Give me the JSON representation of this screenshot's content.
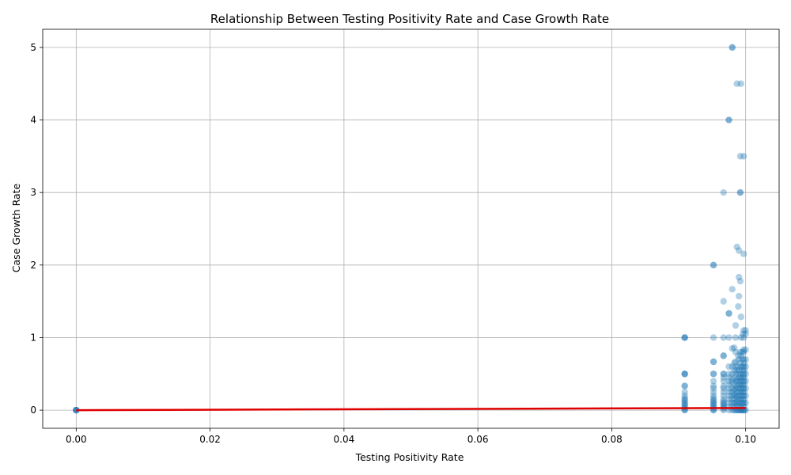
{
  "chart_data": {
    "type": "scatter",
    "title": "Relationship Between Testing Positivity Rate and Case Growth Rate",
    "xlabel": "Testing Positivity Rate",
    "ylabel": "Case Growth Rate",
    "xlim": [
      -0.005,
      0.105
    ],
    "ylim": [
      -0.25,
      5.25
    ],
    "xticks": [
      0.0,
      0.02,
      0.04,
      0.06,
      0.08,
      0.1
    ],
    "xtick_labels": [
      "0.00",
      "0.02",
      "0.04",
      "0.06",
      "0.08",
      "0.10"
    ],
    "yticks": [
      0,
      1,
      2,
      3,
      4,
      5
    ],
    "ytick_labels": [
      "0",
      "1",
      "2",
      "3",
      "4",
      "5"
    ],
    "grid": true,
    "marker_color": "#1f77b4",
    "marker_alpha": 0.35,
    "trend_color": "#e00000",
    "series": [
      {
        "points": [
          [
            0.0,
            0.0
          ],
          [
            0.0,
            0.0
          ],
          [
            0.0,
            0.0
          ],
          [
            0.0,
            0.0
          ],
          [
            0.0,
            0.0
          ],
          [
            0.0909,
            1.0
          ],
          [
            0.0909,
            1.0
          ],
          [
            0.0909,
            1.0
          ],
          [
            0.0909,
            0.5
          ],
          [
            0.0909,
            0.5
          ],
          [
            0.0909,
            0.5
          ],
          [
            0.0909,
            0.333
          ],
          [
            0.0909,
            0.333
          ],
          [
            0.0909,
            0.25
          ],
          [
            0.0909,
            0.2
          ],
          [
            0.0909,
            0.167
          ],
          [
            0.0909,
            0.143
          ],
          [
            0.0909,
            0.125
          ],
          [
            0.0909,
            0.1
          ],
          [
            0.0909,
            0.08
          ],
          [
            0.0909,
            0.06
          ],
          [
            0.0909,
            0.04
          ],
          [
            0.0909,
            0.02
          ],
          [
            0.0909,
            0.0
          ],
          [
            0.0909,
            0.0
          ],
          [
            0.0952,
            2.0
          ],
          [
            0.0952,
            2.0
          ],
          [
            0.0952,
            1.0
          ],
          [
            0.0952,
            0.667
          ],
          [
            0.0952,
            0.667
          ],
          [
            0.0952,
            0.5
          ],
          [
            0.0952,
            0.5
          ],
          [
            0.0952,
            0.4
          ],
          [
            0.0952,
            0.333
          ],
          [
            0.0952,
            0.3
          ],
          [
            0.0952,
            0.25
          ],
          [
            0.0952,
            0.2
          ],
          [
            0.0952,
            0.167
          ],
          [
            0.0952,
            0.14
          ],
          [
            0.0952,
            0.12
          ],
          [
            0.0952,
            0.1
          ],
          [
            0.0952,
            0.08
          ],
          [
            0.0952,
            0.06
          ],
          [
            0.0952,
            0.04
          ],
          [
            0.0952,
            0.02
          ],
          [
            0.0952,
            0.0
          ],
          [
            0.0952,
            0.0
          ],
          [
            0.0967,
            3.0
          ],
          [
            0.0967,
            1.5
          ],
          [
            0.0967,
            1.0
          ],
          [
            0.0967,
            0.75
          ],
          [
            0.0967,
            0.75
          ],
          [
            0.0967,
            0.5
          ],
          [
            0.0967,
            0.5
          ],
          [
            0.0967,
            0.45
          ],
          [
            0.0967,
            0.4
          ],
          [
            0.0967,
            0.33
          ],
          [
            0.0967,
            0.3
          ],
          [
            0.0967,
            0.25
          ],
          [
            0.0967,
            0.2
          ],
          [
            0.0967,
            0.15
          ],
          [
            0.0967,
            0.12
          ],
          [
            0.0967,
            0.1
          ],
          [
            0.0967,
            0.08
          ],
          [
            0.0967,
            0.06
          ],
          [
            0.0967,
            0.04
          ],
          [
            0.0967,
            0.02
          ],
          [
            0.0967,
            0.0
          ],
          [
            0.0975,
            4.0
          ],
          [
            0.0975,
            4.0
          ],
          [
            0.0975,
            1.333
          ],
          [
            0.0975,
            1.333
          ],
          [
            0.0975,
            1.0
          ],
          [
            0.0975,
            0.6
          ],
          [
            0.0975,
            0.5
          ],
          [
            0.0975,
            0.45
          ],
          [
            0.0975,
            0.4
          ],
          [
            0.0975,
            0.35
          ],
          [
            0.0975,
            0.3
          ],
          [
            0.0975,
            0.25
          ],
          [
            0.0975,
            0.2
          ],
          [
            0.0975,
            0.15
          ],
          [
            0.0975,
            0.1
          ],
          [
            0.0975,
            0.05
          ],
          [
            0.0975,
            0.0
          ],
          [
            0.098,
            5.0
          ],
          [
            0.098,
            5.0
          ],
          [
            0.098,
            1.667
          ],
          [
            0.098,
            0.85
          ],
          [
            0.098,
            0.6
          ],
          [
            0.098,
            0.5
          ],
          [
            0.098,
            0.42
          ],
          [
            0.098,
            0.38
          ],
          [
            0.098,
            0.3
          ],
          [
            0.098,
            0.25
          ],
          [
            0.098,
            0.2
          ],
          [
            0.098,
            0.15
          ],
          [
            0.098,
            0.1
          ],
          [
            0.098,
            0.05
          ],
          [
            0.098,
            0.0
          ],
          [
            0.0983,
            0.86
          ],
          [
            0.0983,
            0.65
          ],
          [
            0.0983,
            0.55
          ],
          [
            0.0983,
            0.45
          ],
          [
            0.0983,
            0.35
          ],
          [
            0.0983,
            0.28
          ],
          [
            0.0983,
            0.22
          ],
          [
            0.0983,
            0.16
          ],
          [
            0.0983,
            0.1
          ],
          [
            0.0983,
            0.04
          ],
          [
            0.0983,
            0.0
          ],
          [
            0.0985,
            1.167
          ],
          [
            0.0985,
            1.0
          ],
          [
            0.0985,
            0.8
          ],
          [
            0.0985,
            0.67
          ],
          [
            0.0985,
            0.6
          ],
          [
            0.0985,
            0.5
          ],
          [
            0.0985,
            0.4
          ],
          [
            0.0985,
            0.3
          ],
          [
            0.0985,
            0.2
          ],
          [
            0.0985,
            0.1
          ],
          [
            0.0985,
            0.0
          ],
          [
            0.0987,
            4.5
          ],
          [
            0.0987,
            2.25
          ],
          [
            0.0987,
            0.55
          ],
          [
            0.0987,
            0.42
          ],
          [
            0.0987,
            0.33
          ],
          [
            0.0987,
            0.25
          ],
          [
            0.0987,
            0.18
          ],
          [
            0.0987,
            0.12
          ],
          [
            0.0987,
            0.06
          ],
          [
            0.0987,
            0.0
          ],
          [
            0.0989,
            1.429
          ],
          [
            0.0989,
            0.75
          ],
          [
            0.0989,
            0.6
          ],
          [
            0.0989,
            0.5
          ],
          [
            0.0989,
            0.4
          ],
          [
            0.0989,
            0.3
          ],
          [
            0.0989,
            0.2
          ],
          [
            0.0989,
            0.1
          ],
          [
            0.0989,
            0.0
          ],
          [
            0.099,
            2.2
          ],
          [
            0.099,
            1.833
          ],
          [
            0.099,
            1.571
          ],
          [
            0.099,
            0.7
          ],
          [
            0.099,
            0.55
          ],
          [
            0.099,
            0.45
          ],
          [
            0.099,
            0.35
          ],
          [
            0.099,
            0.25
          ],
          [
            0.099,
            0.15
          ],
          [
            0.099,
            0.05
          ],
          [
            0.099,
            0.0
          ],
          [
            0.0992,
            3.5
          ],
          [
            0.0992,
            3.0
          ],
          [
            0.0992,
            3.0
          ],
          [
            0.0992,
            1.778
          ],
          [
            0.0992,
            0.8
          ],
          [
            0.0992,
            0.65
          ],
          [
            0.0992,
            0.5
          ],
          [
            0.0992,
            0.4
          ],
          [
            0.0992,
            0.3
          ],
          [
            0.0992,
            0.2
          ],
          [
            0.0992,
            0.1
          ],
          [
            0.0992,
            0.0
          ],
          [
            0.0993,
            4.5
          ],
          [
            0.0993,
            1.286
          ],
          [
            0.0993,
            1.0
          ],
          [
            0.0993,
            0.75
          ],
          [
            0.0993,
            0.6
          ],
          [
            0.0993,
            0.45
          ],
          [
            0.0993,
            0.35
          ],
          [
            0.0993,
            0.25
          ],
          [
            0.0993,
            0.15
          ],
          [
            0.0993,
            0.05
          ],
          [
            0.0993,
            0.0
          ],
          [
            0.0995,
            0.8
          ],
          [
            0.0995,
            0.7
          ],
          [
            0.0995,
            0.55
          ],
          [
            0.0995,
            0.45
          ],
          [
            0.0995,
            0.35
          ],
          [
            0.0995,
            0.25
          ],
          [
            0.0995,
            0.15
          ],
          [
            0.0995,
            0.08
          ],
          [
            0.0995,
            0.0
          ],
          [
            0.0996,
            1.05
          ],
          [
            0.0996,
            0.6
          ],
          [
            0.0996,
            0.5
          ],
          [
            0.0996,
            0.4
          ],
          [
            0.0996,
            0.3
          ],
          [
            0.0996,
            0.2
          ],
          [
            0.0996,
            0.1
          ],
          [
            0.0996,
            0.0
          ],
          [
            0.0997,
            3.5
          ],
          [
            0.0997,
            2.154
          ],
          [
            0.0997,
            1.1
          ],
          [
            0.0997,
            1.0
          ],
          [
            0.0997,
            0.833
          ],
          [
            0.0997,
            0.8
          ],
          [
            0.0997,
            0.7
          ],
          [
            0.0997,
            0.6
          ],
          [
            0.0997,
            0.5
          ],
          [
            0.0997,
            0.4
          ],
          [
            0.0997,
            0.3
          ],
          [
            0.0997,
            0.2
          ],
          [
            0.0997,
            0.1
          ],
          [
            0.0997,
            0.0
          ],
          [
            0.0998,
            0.65
          ],
          [
            0.0998,
            0.55
          ],
          [
            0.0998,
            0.45
          ],
          [
            0.0998,
            0.35
          ],
          [
            0.0998,
            0.25
          ],
          [
            0.0998,
            0.15
          ],
          [
            0.0998,
            0.05
          ],
          [
            0.0998,
            0.0
          ],
          [
            0.1,
            1.1
          ],
          [
            0.1,
            1.05
          ],
          [
            0.1,
            0.833
          ],
          [
            0.1,
            0.7
          ],
          [
            0.1,
            0.6
          ],
          [
            0.1,
            0.5
          ],
          [
            0.1,
            0.4
          ],
          [
            0.1,
            0.3
          ],
          [
            0.1,
            0.2
          ],
          [
            0.1,
            0.1
          ],
          [
            0.1,
            0.0
          ]
        ]
      }
    ],
    "trendline": {
      "x": [
        0.0,
        0.1
      ],
      "y": [
        0.0,
        0.03
      ]
    }
  }
}
